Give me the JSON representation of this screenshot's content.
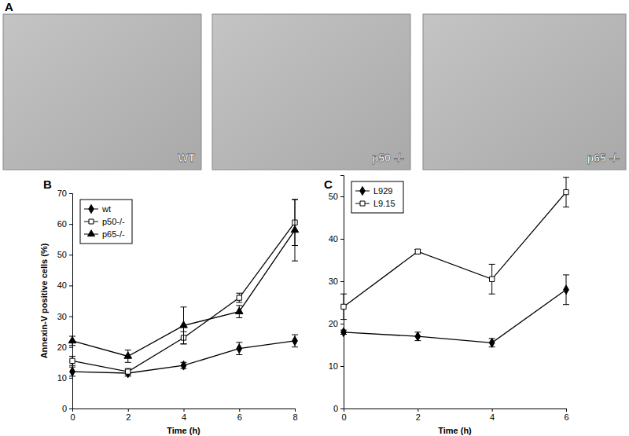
{
  "image_panel": {
    "label": "A",
    "images": [
      "WT",
      "p50 -/-",
      "p65 -/-"
    ]
  },
  "chart_data": [
    {
      "type": "line",
      "title": "B",
      "x_label": "Time (h)",
      "y_label": "Annexin-V positive cells (%)",
      "x": [
        0,
        2,
        4,
        6,
        8
      ],
      "xlim": [
        0,
        8
      ],
      "xticks": [
        0,
        2,
        4,
        6,
        8
      ],
      "ylim": [
        0,
        70
      ],
      "yticks": [
        0,
        10,
        20,
        30,
        40,
        50,
        60,
        70
      ],
      "legend": "upper-left",
      "series": [
        {
          "name": "wt",
          "color": "#000000",
          "marker": "diamond",
          "values": [
            12,
            11.5,
            14,
            19.5,
            22
          ],
          "errors": [
            1.5,
            1,
            1,
            2,
            2
          ]
        },
        {
          "name": "p50-/-",
          "color": "#000000",
          "marker": "open-square",
          "values": [
            15.5,
            12,
            23,
            36,
            60.5
          ],
          "errors": [
            1.5,
            1,
            2,
            1.5,
            7.5
          ]
        },
        {
          "name": "p65-/-",
          "color": "#000000",
          "marker": "triangle",
          "values": [
            22,
            17,
            27,
            31.5,
            58
          ],
          "errors": [
            1.5,
            2,
            6,
            2,
            10
          ]
        }
      ]
    },
    {
      "type": "line",
      "title": "C",
      "x_label": "Time (h)",
      "x": [
        0,
        2,
        4,
        6
      ],
      "xlim": [
        0,
        6
      ],
      "xticks": [
        0,
        2,
        4,
        6
      ],
      "ylim": [
        0,
        55
      ],
      "yticks": [
        0,
        10,
        20,
        30,
        40,
        50
      ],
      "legend": "upper-left",
      "series": [
        {
          "name": "L929",
          "color": "#000000",
          "marker": "diamond",
          "values": [
            18,
            17,
            15.5,
            28
          ],
          "errors": [
            0.5,
            1,
            1,
            3.5
          ]
        },
        {
          "name": "L9.15",
          "color": "#000000",
          "marker": "open-square",
          "values": [
            24,
            37,
            30.5,
            51
          ],
          "errors": [
            3,
            0.5,
            3.5,
            3.5
          ]
        }
      ]
    }
  ]
}
